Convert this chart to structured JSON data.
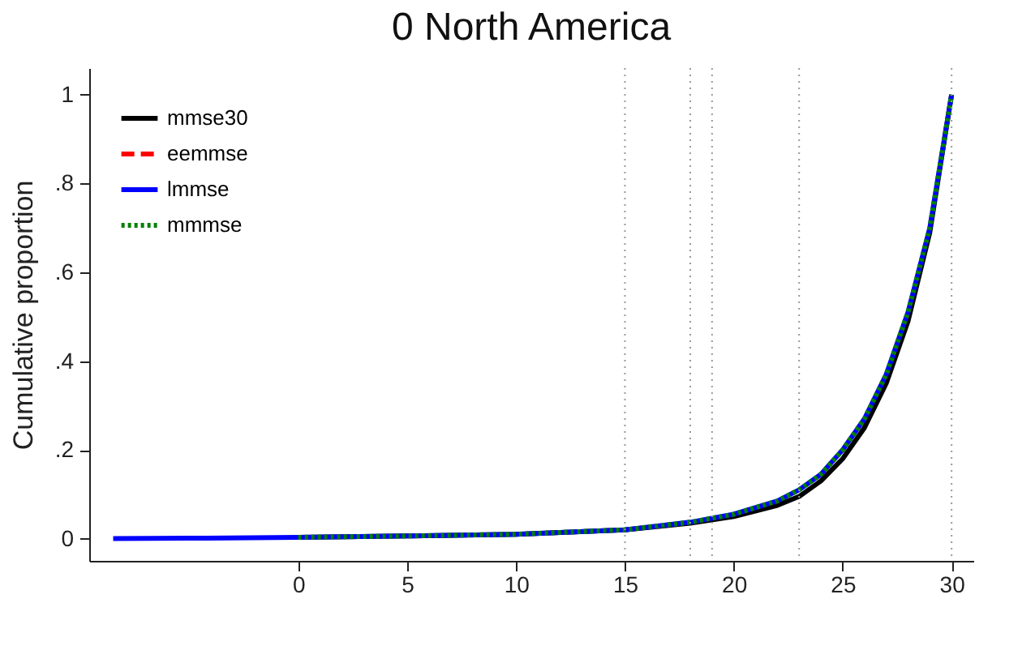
{
  "chart_data": {
    "type": "line",
    "title": "0 North America",
    "ylabel": "Cumulative proportion",
    "xlim": [
      -9.6,
      31
    ],
    "xticks": [
      0,
      5,
      10,
      15,
      20,
      25,
      30
    ],
    "ylim": [
      -0.05,
      1.06
    ],
    "yticks": [
      0,
      {
        "value": 0.2,
        "label": ".2"
      },
      {
        "value": 0.4,
        "label": ".4"
      },
      {
        "value": 0.6,
        "label": ".6"
      },
      {
        "value": 0.8,
        "label": ".8"
      },
      1
    ],
    "grid": false,
    "legend": "top left",
    "marker": "none",
    "ref_lines": [
      {
        "axis": "x",
        "value": 15,
        "line_style": "dotted"
      },
      {
        "axis": "x",
        "value": 18,
        "line_style": "dotted"
      },
      {
        "axis": "x",
        "value": 19,
        "line_style": "dotted"
      },
      {
        "axis": "x",
        "value": 23,
        "line_style": "dotted"
      },
      {
        "axis": "x",
        "value": 30,
        "line_style": "dotted"
      }
    ],
    "series": [
      {
        "name": "mmse30",
        "color": "#000000",
        "line_style": "solid",
        "x": [
          0,
          5,
          10,
          15,
          18,
          20,
          22,
          23,
          24,
          25,
          26,
          27,
          28,
          29,
          30
        ],
        "values": [
          0.003,
          0.006,
          0.01,
          0.02,
          0.035,
          0.05,
          0.075,
          0.095,
          0.13,
          0.18,
          0.25,
          0.35,
          0.49,
          0.69,
          1
        ]
      },
      {
        "name": "eemmse",
        "color": "#ff0000",
        "line_style": "dashed"
      },
      {
        "name": "lmmse",
        "color": "#0000ff",
        "line_style": "solid",
        "x": [
          -8.5,
          -5,
          0,
          5,
          10,
          15,
          18,
          20,
          22,
          23,
          24,
          25,
          26,
          27,
          28,
          29,
          30
        ],
        "values": [
          0,
          0.001,
          0.003,
          0.006,
          0.01,
          0.02,
          0.037,
          0.055,
          0.085,
          0.11,
          0.145,
          0.2,
          0.27,
          0.37,
          0.51,
          0.7,
          1
        ]
      },
      {
        "name": "mmmse",
        "color": "#008000",
        "line_style": "dotted",
        "x": [
          0,
          5,
          10,
          15,
          18,
          20,
          22,
          23,
          24,
          25,
          26,
          27,
          28,
          29,
          30
        ],
        "values": [
          0.003,
          0.006,
          0.01,
          0.02,
          0.037,
          0.055,
          0.085,
          0.11,
          0.145,
          0.2,
          0.27,
          0.37,
          0.51,
          0.7,
          1
        ]
      }
    ]
  }
}
